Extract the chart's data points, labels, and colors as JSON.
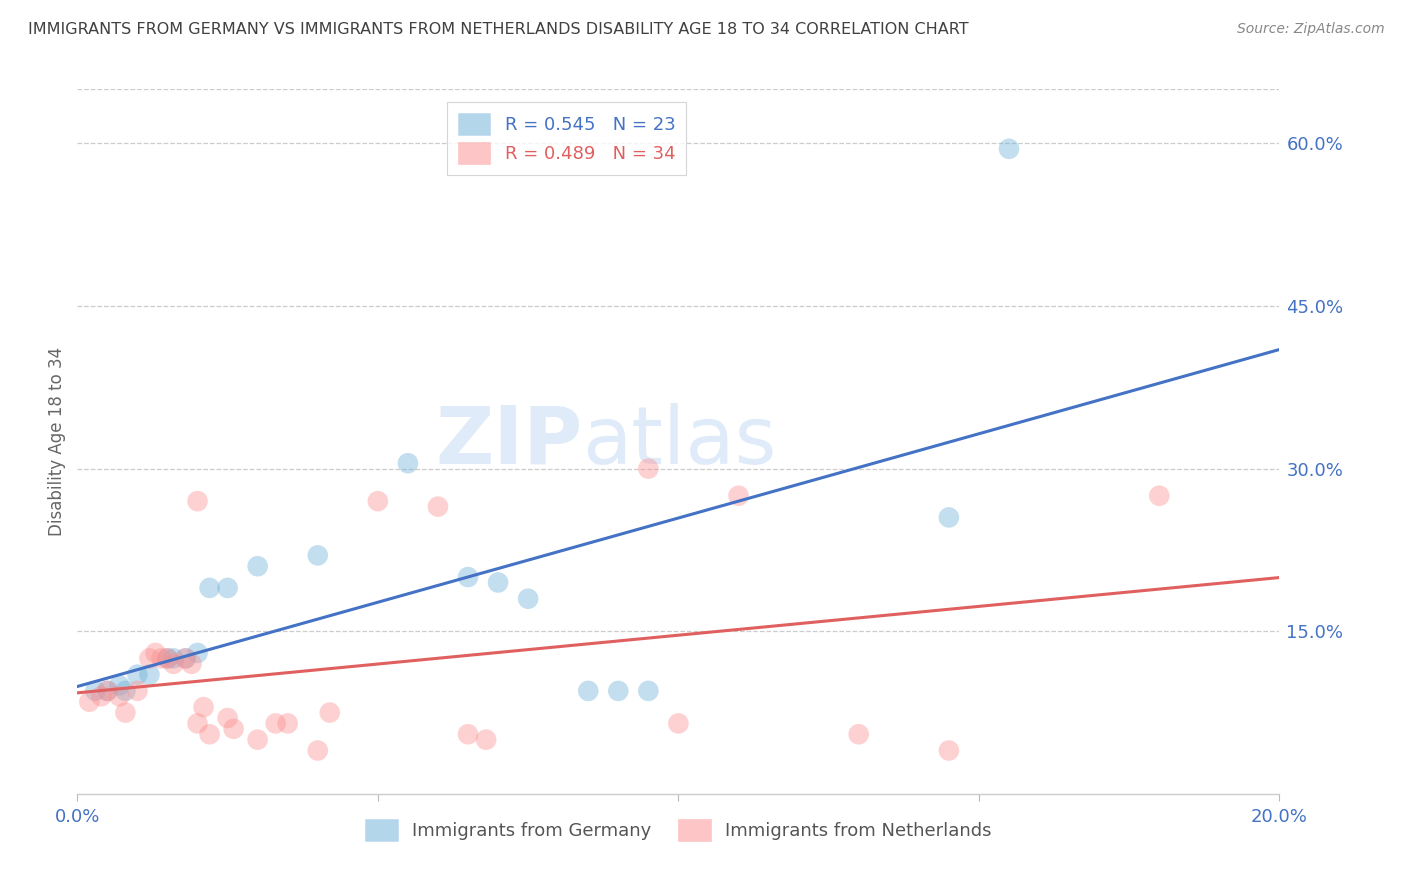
{
  "title": "IMMIGRANTS FROM GERMANY VS IMMIGRANTS FROM NETHERLANDS DISABILITY AGE 18 TO 34 CORRELATION CHART",
  "source": "Source: ZipAtlas.com",
  "ylabel": "Disability Age 18 to 34",
  "xlim": [
    0.0,
    0.2
  ],
  "ylim": [
    0.0,
    0.65
  ],
  "xticks": [
    0.0,
    0.05,
    0.1,
    0.15,
    0.2
  ],
  "xtick_labels": [
    "0.0%",
    "",
    "",
    "",
    "20.0%"
  ],
  "ytick_labels_right": [
    "60.0%",
    "45.0%",
    "30.0%",
    "15.0%"
  ],
  "yticks_right": [
    0.6,
    0.45,
    0.3,
    0.15
  ],
  "germany_color": "#6baed6",
  "netherlands_color": "#fc8d8d",
  "germany_R": "0.545",
  "germany_N": "23",
  "netherlands_R": "0.489",
  "netherlands_N": "34",
  "germany_scatter": [
    [
      0.003,
      0.095
    ],
    [
      0.005,
      0.095
    ],
    [
      0.007,
      0.1
    ],
    [
      0.008,
      0.095
    ],
    [
      0.01,
      0.11
    ],
    [
      0.012,
      0.11
    ],
    [
      0.015,
      0.125
    ],
    [
      0.016,
      0.125
    ],
    [
      0.018,
      0.125
    ],
    [
      0.02,
      0.13
    ],
    [
      0.022,
      0.19
    ],
    [
      0.025,
      0.19
    ],
    [
      0.03,
      0.21
    ],
    [
      0.04,
      0.22
    ],
    [
      0.055,
      0.305
    ],
    [
      0.065,
      0.2
    ],
    [
      0.07,
      0.195
    ],
    [
      0.075,
      0.18
    ],
    [
      0.085,
      0.095
    ],
    [
      0.09,
      0.095
    ],
    [
      0.095,
      0.095
    ],
    [
      0.145,
      0.255
    ],
    [
      0.155,
      0.595
    ]
  ],
  "netherlands_scatter": [
    [
      0.002,
      0.085
    ],
    [
      0.004,
      0.09
    ],
    [
      0.005,
      0.095
    ],
    [
      0.007,
      0.09
    ],
    [
      0.008,
      0.075
    ],
    [
      0.01,
      0.095
    ],
    [
      0.012,
      0.125
    ],
    [
      0.013,
      0.13
    ],
    [
      0.014,
      0.125
    ],
    [
      0.015,
      0.125
    ],
    [
      0.016,
      0.12
    ],
    [
      0.018,
      0.125
    ],
    [
      0.019,
      0.12
    ],
    [
      0.02,
      0.065
    ],
    [
      0.021,
      0.08
    ],
    [
      0.022,
      0.055
    ],
    [
      0.025,
      0.07
    ],
    [
      0.026,
      0.06
    ],
    [
      0.03,
      0.05
    ],
    [
      0.033,
      0.065
    ],
    [
      0.035,
      0.065
    ],
    [
      0.04,
      0.04
    ],
    [
      0.042,
      0.075
    ],
    [
      0.05,
      0.27
    ],
    [
      0.06,
      0.265
    ],
    [
      0.065,
      0.055
    ],
    [
      0.068,
      0.05
    ],
    [
      0.095,
      0.3
    ],
    [
      0.1,
      0.065
    ],
    [
      0.11,
      0.275
    ],
    [
      0.02,
      0.27
    ],
    [
      0.13,
      0.055
    ],
    [
      0.145,
      0.04
    ],
    [
      0.18,
      0.275
    ]
  ],
  "watermark": "ZIPatlas",
  "background_color": "#ffffff",
  "grid_color": "#cccccc",
  "axis_color": "#4472c4",
  "title_color": "#404040",
  "line_germany_color": "#4472c4",
  "line_netherlands_color": "#e06060"
}
